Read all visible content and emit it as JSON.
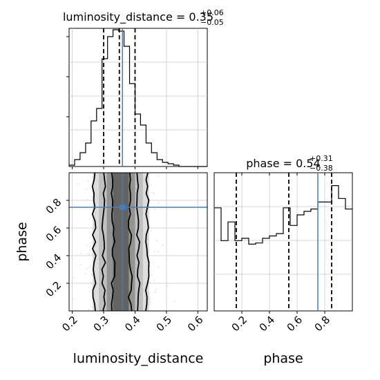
{
  "chart_data": {
    "type": "corner",
    "parameters": [
      "luminosity_distance",
      "phase"
    ],
    "truths": {
      "luminosity_distance": 0.36,
      "phase": 0.75
    },
    "truth_color": "#3f7fbf",
    "panels": [
      {
        "id": "hist-luminosity_distance",
        "type": "histogram",
        "title_param": "luminosity_distance",
        "title_value": "0.35",
        "title_plus": "+0.06",
        "title_minus": "−0.05",
        "xlim": [
          0.19,
          0.63
        ],
        "ylim": [
          0,
          1.0
        ],
        "bin_edges": [
          0.19,
          0.2075,
          0.225,
          0.2425,
          0.26,
          0.2775,
          0.295,
          0.3125,
          0.33,
          0.3475,
          0.365,
          0.3825,
          0.4,
          0.4175,
          0.435,
          0.4525,
          0.47,
          0.4875,
          0.505,
          0.5225,
          0.54,
          0.5575,
          0.575,
          0.5925,
          0.61,
          0.63
        ],
        "counts": [
          0.01,
          0.05,
          0.1,
          0.17,
          0.33,
          0.42,
          0.78,
          0.94,
          0.99,
          0.98,
          0.87,
          0.6,
          0.38,
          0.3,
          0.17,
          0.1,
          0.05,
          0.03,
          0.02,
          0.01,
          0.0,
          0.0,
          0.0,
          0.0,
          0.0
        ],
        "quantiles": [
          0.3,
          0.35,
          0.4
        ],
        "truth": 0.36
      },
      {
        "id": "hist-phase",
        "type": "histogram",
        "title_param": "phase",
        "title_value": "0.54",
        "title_plus": "+0.31",
        "title_minus": "−0.38",
        "xlim": [
          0.0,
          1.0
        ],
        "ylim": [
          0,
          1.18
        ],
        "bin_edges": [
          0.0,
          0.05,
          0.1,
          0.15,
          0.2,
          0.25,
          0.3,
          0.35,
          0.4,
          0.45,
          0.5,
          0.55,
          0.6,
          0.65,
          0.7,
          0.75,
          0.8,
          0.85,
          0.9,
          0.95,
          1.0
        ],
        "counts": [
          0.88,
          0.6,
          0.76,
          0.6,
          0.62,
          0.57,
          0.58,
          0.62,
          0.64,
          0.66,
          0.88,
          0.73,
          0.82,
          0.85,
          0.87,
          0.93,
          0.93,
          1.07,
          0.96,
          0.87
        ],
        "quantiles": [
          0.16,
          0.54,
          0.85
        ],
        "truth": 0.75
      },
      {
        "id": "density-phase-vs-distance",
        "type": "2d-density",
        "xlim": [
          0.19,
          0.63
        ],
        "ylim": [
          0.0,
          1.0
        ],
        "truth": [
          0.36,
          0.75
        ]
      }
    ],
    "axes": {
      "luminosity_distance": {
        "label": "luminosity_distance",
        "ticks": [
          0.2,
          0.3,
          0.4,
          0.5,
          0.6
        ],
        "tick_labels": [
          "0.2",
          "0.3",
          "0.4",
          "0.5",
          "0.6"
        ]
      },
      "phase": {
        "label": "phase",
        "ticks": [
          0.2,
          0.4,
          0.6,
          0.8
        ],
        "tick_labels": [
          "0.2",
          "0.4",
          "0.6",
          "0.8"
        ]
      }
    },
    "grid": true
  }
}
